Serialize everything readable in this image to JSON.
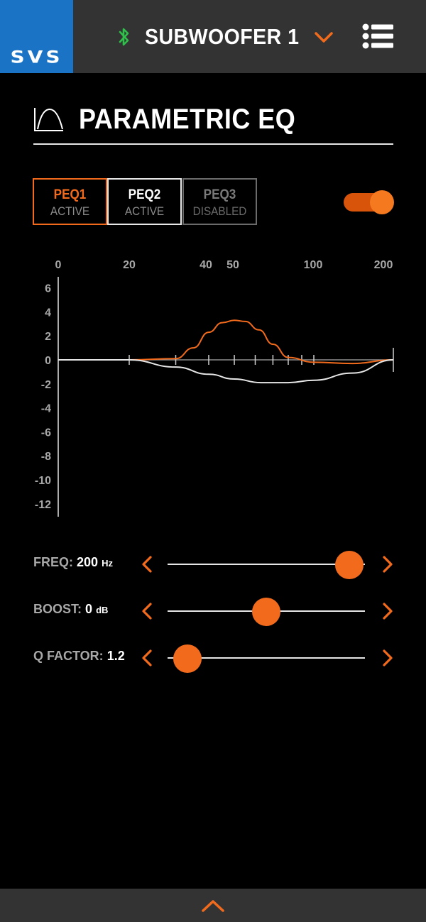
{
  "header": {
    "logo_text": "SVS",
    "device_name": "SUBWOOFER 1",
    "icons": {
      "bluetooth": "bluetooth-icon",
      "dropdown": "chevron-down-icon",
      "menu": "list-menu-icon"
    }
  },
  "section": {
    "title": "PARAMETRIC EQ",
    "icon": "eq-curve-icon"
  },
  "tabs": [
    {
      "name": "PEQ1",
      "state": "ACTIVE"
    },
    {
      "name": "PEQ2",
      "state": "ACTIVE"
    },
    {
      "name": "PEQ3",
      "state": "DISABLED"
    }
  ],
  "toggle": {
    "on": true
  },
  "chart_data": {
    "type": "line",
    "x_scale": "log",
    "x_ticks": [
      "0",
      "20",
      "40",
      "50",
      "100",
      "200"
    ],
    "y_ticks": [
      "6",
      "4",
      "2",
      "0",
      "-2",
      "-4",
      "-6",
      "-8",
      "-10",
      "-12"
    ],
    "ylim": [
      -12,
      6
    ],
    "series": [
      {
        "color": "#f26b1d",
        "points": [
          [
            10,
            0
          ],
          [
            20,
            0
          ],
          [
            30,
            0.1
          ],
          [
            35,
            1.0
          ],
          [
            40,
            2.3
          ],
          [
            45,
            3.1
          ],
          [
            50,
            3.3
          ],
          [
            55,
            3.2
          ],
          [
            62,
            2.5
          ],
          [
            70,
            1.3
          ],
          [
            80,
            0.2
          ],
          [
            100,
            -0.2
          ],
          [
            140,
            -0.3
          ],
          [
            200,
            0
          ]
        ]
      },
      {
        "color": "#e6e6e6",
        "points": [
          [
            10,
            0
          ],
          [
            20,
            0
          ],
          [
            30,
            -0.6
          ],
          [
            40,
            -1.2
          ],
          [
            50,
            -1.6
          ],
          [
            63,
            -1.9
          ],
          [
            80,
            -1.9
          ],
          [
            100,
            -1.7
          ],
          [
            140,
            -1.1
          ],
          [
            200,
            0
          ]
        ]
      }
    ]
  },
  "sliders": [
    {
      "label": "FREQ:",
      "value": "200",
      "unit": "Hz",
      "position": 0.92
    },
    {
      "label": "BOOST:",
      "value": "0",
      "unit": "dB",
      "position": 0.5
    },
    {
      "label": "Q FACTOR:",
      "value": "1.2",
      "unit": "",
      "position": 0.1
    }
  ],
  "colors": {
    "accent": "#f26b1d",
    "header_bg": "#333333",
    "logo_bg": "#1a73c4",
    "bluetooth": "#2fbf4a"
  },
  "footer": {
    "icon": "chevron-up-icon"
  }
}
